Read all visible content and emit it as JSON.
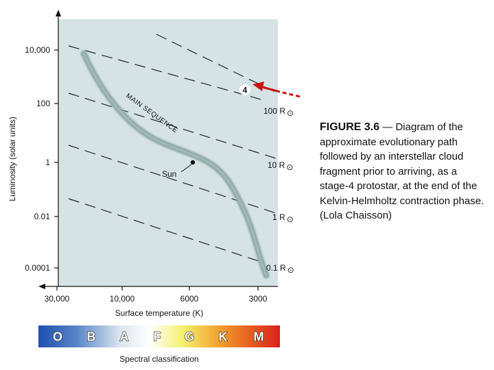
{
  "diagram": {
    "y_axis": {
      "title": "Luminosity (solar units)",
      "ticks": [
        "10,000",
        "100",
        "1",
        "0.01",
        "0.0001"
      ]
    },
    "x_axis": {
      "title": "Surface temperature (K)",
      "ticks": [
        "30,000",
        "10,000",
        "6000",
        "3000"
      ]
    },
    "main_sequence_label": "MAIN SEQUENCE",
    "sun_label": "Sun",
    "radius_lines": [
      {
        "label": "100 R",
        "symbol": "⊙"
      },
      {
        "label": "10 R",
        "symbol": "⊙"
      },
      {
        "label": "1 R",
        "symbol": "⊙"
      },
      {
        "label": "0.1 R",
        "symbol": "⊙"
      }
    ],
    "stage_marker": "4",
    "spectral": {
      "classes": [
        "O",
        "B",
        "A",
        "F",
        "G",
        "K",
        "M"
      ],
      "title": "Spectral classification"
    }
  },
  "caption": {
    "title": "FIGURE 3.6",
    "text": " — Diagram of the approximate evolutionary path followed by an interstellar cloud fragment prior to arriving, as a stage-4 protostar, at the end of the Kelvin-Helmholtz contraction phase. (Lola Chaisson)"
  },
  "colors": {
    "plot_background": "#d5e3e5",
    "main_sequence_band": "#8fa9a7",
    "arrow_red": "#cc1111"
  }
}
